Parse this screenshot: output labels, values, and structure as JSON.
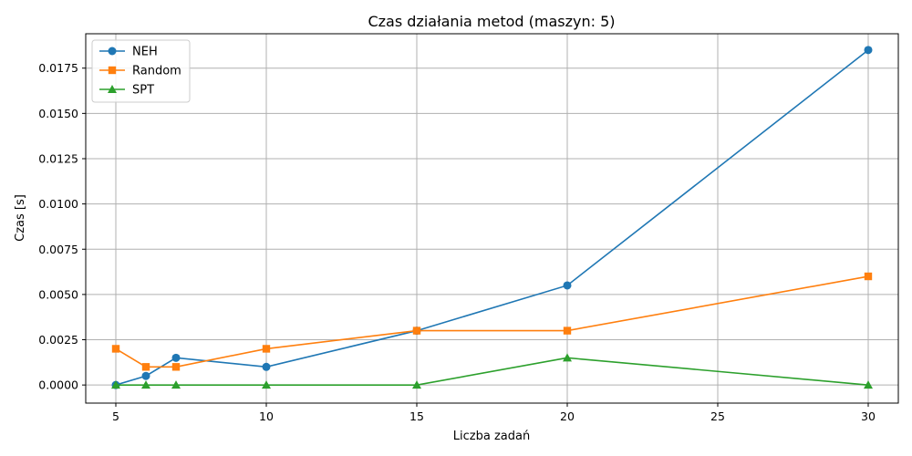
{
  "chart_data": {
    "type": "line",
    "title": "Czas działania metod (maszyn: 5)",
    "xlabel": "Liczba zadań",
    "ylabel": "Czas [s]",
    "xlim": [
      4,
      31
    ],
    "ylim": [
      -0.001,
      0.0194
    ],
    "xticks": [
      5,
      10,
      15,
      20,
      25,
      30
    ],
    "xtick_labels": [
      "5",
      "10",
      "15",
      "20",
      "25",
      "30"
    ],
    "yticks": [
      0,
      0.0025,
      0.005,
      0.0075,
      0.01,
      0.0125,
      0.015,
      0.0175
    ],
    "ytick_labels": [
      "0.0000",
      "0.0025",
      "0.0050",
      "0.0075",
      "0.0100",
      "0.0125",
      "0.0150",
      "0.0175"
    ],
    "grid": true,
    "legend_position": "top-left",
    "series": [
      {
        "name": "NEH",
        "color": "#1f77b4",
        "marker": "circle",
        "x": [
          5,
          6,
          7,
          10,
          15,
          20,
          30
        ],
        "y": [
          0.0,
          0.0005,
          0.0015,
          0.001,
          0.003,
          0.0055,
          0.0185
        ]
      },
      {
        "name": "Random",
        "color": "#ff7f0e",
        "marker": "square",
        "x": [
          5,
          6,
          7,
          10,
          15,
          20,
          30
        ],
        "y": [
          0.002,
          0.001,
          0.001,
          0.002,
          0.003,
          0.003,
          0.006
        ]
      },
      {
        "name": "SPT",
        "color": "#2ca02c",
        "marker": "triangle",
        "x": [
          5,
          6,
          7,
          10,
          15,
          20,
          30
        ],
        "y": [
          0.0,
          0.0,
          0.0,
          0.0,
          0.0,
          0.0015,
          0.0
        ]
      }
    ]
  }
}
